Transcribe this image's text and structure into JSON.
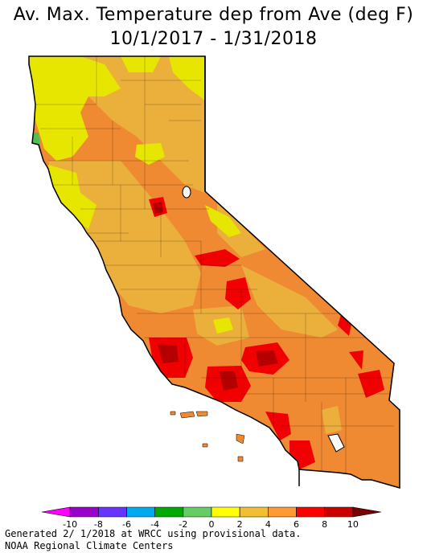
{
  "title": {
    "line1": "Av. Max. Temperature dep from Ave (deg F)",
    "line2": "10/1/2017 - 1/31/2018"
  },
  "legend": {
    "ticks": [
      "-10",
      "-8",
      "-6",
      "-4",
      "-2",
      "0",
      "2",
      "4",
      "6",
      "8",
      "10"
    ],
    "colors": [
      "#ff00ff",
      "#9900cc",
      "#6633ff",
      "#00aaee",
      "#00aa00",
      "#66cc66",
      "#ffff00",
      "#f0c030",
      "#ff9933",
      "#ff0000",
      "#cc0000",
      "#770000"
    ]
  },
  "map_colors": {
    "yellow": "#e6e600",
    "light_orange": "#ebb03c",
    "orange": "#f08a32",
    "red": "#f00000",
    "dark_red": "#b40000",
    "green": "#50c050",
    "border": "#000000"
  },
  "footer": {
    "line1": "Generated 2/ 1/2018 at WRCC using provisional data.",
    "line2": "NOAA Regional Climate Centers"
  }
}
